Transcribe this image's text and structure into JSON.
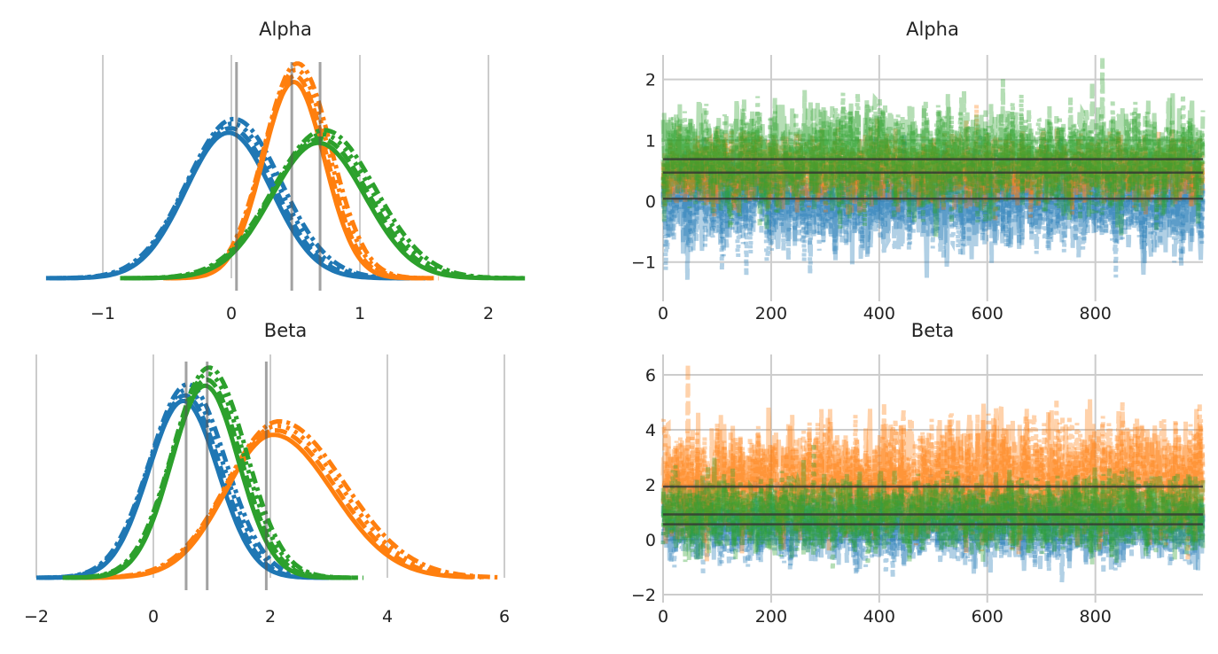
{
  "chart_data": [
    {
      "type": "line",
      "subtype": "kde",
      "title": "Alpha",
      "xlim": [
        -1.5,
        2.3
      ],
      "xticks": [
        "−1",
        "0",
        "1",
        "2"
      ],
      "xtick_values": [
        -1,
        0,
        1,
        2
      ],
      "grid": "vertical",
      "reference_lines": [
        0.04,
        0.47,
        0.69
      ],
      "series": [
        {
          "color": "#1f77b4",
          "mean": 0.0,
          "sd": 0.35,
          "chains": 4
        },
        {
          "color": "#ff7f0e",
          "mean": 0.5,
          "sd": 0.25,
          "chains": 4
        },
        {
          "color": "#2ca02c",
          "mean": 0.7,
          "sd": 0.38,
          "chains": 4
        }
      ]
    },
    {
      "type": "line",
      "subtype": "trace",
      "title": "Alpha",
      "xlim": [
        0,
        999
      ],
      "ylim": [
        -1.6,
        2.5
      ],
      "xticks": [
        "0",
        "200",
        "400",
        "600",
        "800"
      ],
      "xtick_values": [
        0,
        200,
        400,
        600,
        800
      ],
      "yticks": [
        "−1",
        "0",
        "1",
        "2"
      ],
      "ytick_values": [
        -1,
        0,
        1,
        2
      ],
      "grid": "both",
      "reference_lines": [
        0.04,
        0.47,
        0.69
      ],
      "series": [
        {
          "color": "#1f77b4",
          "mean": 0.0,
          "sd": 0.35,
          "chains": 4
        },
        {
          "color": "#ff7f0e",
          "mean": 0.5,
          "sd": 0.25,
          "chains": 4
        },
        {
          "color": "#2ca02c",
          "mean": 0.7,
          "sd": 0.38,
          "chains": 4
        }
      ]
    },
    {
      "type": "line",
      "subtype": "kde",
      "title": "Beta",
      "xlim": [
        -2,
        6.3
      ],
      "xticks": [
        "−2",
        "0",
        "2",
        "4",
        "6"
      ],
      "xtick_values": [
        -2,
        0,
        2,
        4,
        6
      ],
      "grid": "vertical",
      "reference_lines": [
        0.56,
        0.92,
        1.93
      ],
      "series": [
        {
          "color": "#1f77b4",
          "mean": 0.55,
          "sd": 0.62,
          "chains": 4
        },
        {
          "color": "#ff7f0e",
          "mean": 2.1,
          "sd": 0.85,
          "chains": 4
        },
        {
          "color": "#2ca02c",
          "mean": 0.92,
          "sd": 0.6,
          "chains": 4
        }
      ]
    },
    {
      "type": "line",
      "subtype": "trace",
      "title": "Beta",
      "xlim": [
        0,
        999
      ],
      "ylim": [
        -2.2,
        6.9
      ],
      "xticks": [
        "0",
        "200",
        "400",
        "600",
        "800"
      ],
      "xtick_values": [
        0,
        200,
        400,
        600,
        800
      ],
      "yticks": [
        "−2",
        "0",
        "2",
        "4",
        "6"
      ],
      "ytick_values": [
        -2,
        0,
        2,
        4,
        6
      ],
      "grid": "both",
      "reference_lines": [
        0.56,
        0.92,
        1.93
      ],
      "series": [
        {
          "color": "#1f77b4",
          "mean": 0.55,
          "sd": 0.62,
          "chains": 4
        },
        {
          "color": "#ff7f0e",
          "mean": 2.1,
          "sd": 0.85,
          "chains": 4
        },
        {
          "color": "#2ca02c",
          "mean": 0.92,
          "sd": 0.6,
          "chains": 4
        }
      ]
    }
  ]
}
